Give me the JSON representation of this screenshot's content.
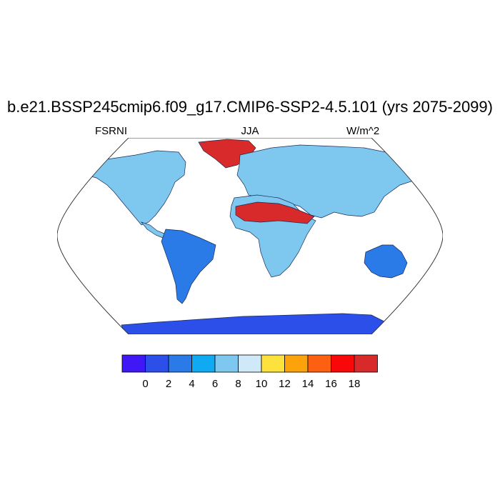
{
  "title": "b.e21.BSSP245cmip6.f09_g17.CMIP6-SSP2-4.5.101 (yrs 2075-2099)",
  "variable": "FSRNI",
  "season": "JJA",
  "units": "W/m^2",
  "colorbar": {
    "labels": [
      "0",
      "2",
      "4",
      "6",
      "8",
      "10",
      "12",
      "14",
      "16",
      "18"
    ],
    "colors": [
      "#4017f5",
      "#2b4fe8",
      "#2a7ae8",
      "#10aaf2",
      "#7ec8ef",
      "#cfe9f8",
      "#fde13c",
      "#fca30c",
      "#fc6010",
      "#f80808",
      "#d82a2a"
    ]
  },
  "map": {
    "projection": "Robinson",
    "ocean_color": "#ffffff",
    "regions": [
      {
        "name": "north-america",
        "color": "#7ec8ef"
      },
      {
        "name": "south-america",
        "color": "#2a7ae8"
      },
      {
        "name": "africa",
        "color": "#7ec8ef"
      },
      {
        "name": "eurasia",
        "color": "#7ec8ef"
      },
      {
        "name": "greenland",
        "color": "#d82a2a"
      },
      {
        "name": "australia",
        "color": "#2a7ae8"
      },
      {
        "name": "antarctica",
        "color": "#2b4fe8"
      },
      {
        "name": "sahara",
        "color": "#d82a2a"
      }
    ]
  }
}
